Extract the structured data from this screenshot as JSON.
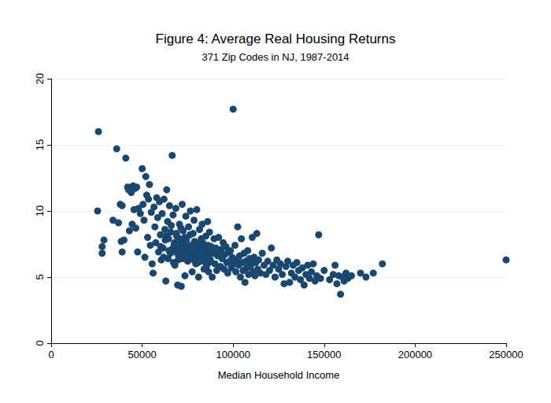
{
  "chart_data": {
    "type": "scatter",
    "title": "Figure 4: Average Real Housing Returns",
    "subtitle": "371 Zip Codes in NJ, 1987-2014",
    "x_label": "Median Household Income",
    "color": "#1a476f",
    "marker": "circle",
    "grid": true,
    "xlim": [
      0,
      250000
    ],
    "xticks": [
      0,
      50000,
      100000,
      150000,
      200000,
      250000
    ],
    "ylim": [
      0,
      20
    ],
    "yticks": [
      0,
      5,
      10,
      15,
      20
    ],
    "x": [
      25500,
      26000,
      28000,
      28000,
      29000,
      34000,
      36000,
      37000,
      38000,
      39000,
      38500,
      39000,
      40000,
      41000,
      42000,
      42500,
      43000,
      44000,
      44500,
      45000,
      45500,
      46000,
      46500,
      47000,
      47500,
      48000,
      49000,
      50000,
      50500,
      51000,
      51500,
      52000,
      52500,
      53000,
      53500,
      54000,
      54500,
      55000,
      55500,
      56000,
      56500,
      57000,
      57500,
      58000,
      58500,
      59000,
      59500,
      60000,
      60500,
      61000,
      61500,
      62000,
      62500,
      63000,
      63500,
      64000,
      64500,
      65000,
      65500,
      66000,
      66500,
      67000,
      67500,
      68000,
      68500,
      69000,
      69500,
      70000,
      70500,
      71000,
      71500,
      72000,
      72500,
      73000,
      73500,
      74000,
      74500,
      75000,
      75500,
      76000,
      76500,
      77000,
      77500,
      78000,
      78500,
      79000,
      79500,
      80000,
      80500,
      81000,
      81500,
      82000,
      82500,
      83000,
      83500,
      84000,
      84500,
      85000,
      85500,
      86000,
      60200,
      61800,
      62700,
      63300,
      64200,
      64800,
      65700,
      66300,
      67200,
      67800,
      68300,
      68800,
      69300,
      69800,
      70300,
      70800,
      71300,
      71800,
      72300,
      72800,
      73300,
      73800,
      74300,
      74800,
      75300,
      75800,
      76300,
      76800,
      77300,
      77800,
      78300,
      78800,
      79300,
      79800,
      80300,
      80800,
      81300,
      81800,
      82300,
      82800,
      83300,
      83800,
      84300,
      84800,
      85300,
      85800,
      86300,
      86800,
      87300,
      87800,
      86500,
      87000,
      87500,
      88000,
      88500,
      89000,
      89500,
      90000,
      90500,
      91000,
      91500,
      92000,
      92500,
      93000,
      93500,
      94000,
      94500,
      95000,
      95500,
      96000,
      96500,
      97000,
      97500,
      98000,
      98500,
      99000,
      99500,
      100000,
      100500,
      101000,
      101500,
      102000,
      102500,
      103000,
      103500,
      104000,
      104500,
      105000,
      105500,
      106000,
      106500,
      107000,
      107500,
      108000,
      108500,
      109000,
      109500,
      110000,
      110500,
      111000,
      111500,
      112000,
      112500,
      113000,
      113500,
      114000,
      115000,
      116000,
      117000,
      118000,
      119000,
      120000,
      121000,
      122000,
      123000,
      124000,
      125000,
      126000,
      127000,
      128000,
      129000,
      130000,
      131000,
      132000,
      133000,
      134000,
      135000,
      136000,
      137000,
      138000,
      139000,
      140000,
      141000,
      142000,
      143000,
      144000,
      145000,
      146000,
      147000,
      148000,
      150000,
      153000,
      155000,
      156000,
      157000,
      158000,
      159000,
      160000,
      161000,
      162000,
      163000,
      165000,
      170000,
      173000,
      177000,
      182000,
      250000
    ],
    "values": [
      10.0,
      16.0,
      6.8,
      7.3,
      7.8,
      9.3,
      14.7,
      9.1,
      10.5,
      10.4,
      7.7,
      6.9,
      7.8,
      14.0,
      11.8,
      11.6,
      8.5,
      11.4,
      9.0,
      11.9,
      10.1,
      11.7,
      8.7,
      11.8,
      6.9,
      10.2,
      9.8,
      13.2,
      10.5,
      9.3,
      6.5,
      12.6,
      11.2,
      8.0,
      10.9,
      12.0,
      7.4,
      9.9,
      6.0,
      5.3,
      10.3,
      8.8,
      7.6,
      11.0,
      9.5,
      6.9,
      10.7,
      8.2,
      6.3,
      9.8,
      7.2,
      10.9,
      8.6,
      4.7,
      11.6,
      9.2,
      7.9,
      10.4,
      6.8,
      8.9,
      14.2,
      9.7,
      7.4,
      5.9,
      10.2,
      8.1,
      4.4,
      6.6,
      9.0,
      7.7,
      4.3,
      10.5,
      8.5,
      6.9,
      5.1,
      9.6,
      7.3,
      6.2,
      8.8,
      7.0,
      10.0,
      6.5,
      5.4,
      8.3,
      9.3,
      7.1,
      6.0,
      10.1,
      7.6,
      5.0,
      8.6,
      6.7,
      7.9,
      9.0,
      6.2,
      5.6,
      7.4,
      8.1,
      6.9,
      9.2,
      7.3,
      6.5,
      7.8,
      8.1,
      6.4,
      7.0,
      8.4,
      7.1,
      6.1,
      7.6,
      6.9,
      8.3,
      7.2,
      6.3,
      7.9,
      6.8,
      8.7,
      7.5,
      6.4,
      7.1,
      8.0,
      6.6,
      7.8,
      6.9,
      7.2,
      6.4,
      8.2,
      7.4,
      6.8,
      7.0,
      6.3,
      7.7,
      6.6,
      7.3,
      6.8,
      6.1,
      7.2,
      6.5,
      7.0,
      6.3,
      7.6,
      6.9,
      6.4,
      7.1,
      5.8,
      6.6,
      7.4,
      6.1,
      6.8,
      7.0,
      5.4,
      8.4,
      6.3,
      7.3,
      5.0,
      6.8,
      7.9,
      6.0,
      7.2,
      5.5,
      6.6,
      8.0,
      6.9,
      5.8,
      7.1,
      6.4,
      7.6,
      5.6,
      6.7,
      7.3,
      6.1,
      5.3,
      6.9,
      6.2,
      7.0,
      5.7,
      6.5,
      17.7,
      6.0,
      7.4,
      5.4,
      6.3,
      8.8,
      5.9,
      6.6,
      5.0,
      7.9,
      6.1,
      5.5,
      6.8,
      4.6,
      6.2,
      5.7,
      7.0,
      5.2,
      6.4,
      5.8,
      6.0,
      8.0,
      5.4,
      6.5,
      5.1,
      6.1,
      8.3,
      5.6,
      6.3,
      5.3,
      6.8,
      5.9,
      5.2,
      6.2,
      5.5,
      7.2,
      5.9,
      5.0,
      6.3,
      5.6,
      6.0,
      5.2,
      4.5,
      5.8,
      6.2,
      4.6,
      5.3,
      5.9,
      5.0,
      6.1,
      5.5,
      4.8,
      5.7,
      4.4,
      5.2,
      5.9,
      4.9,
      5.4,
      6.0,
      4.7,
      5.1,
      8.2,
      4.9,
      5.5,
      4.8,
      5.2,
      5.9,
      4.5,
      5.1,
      3.7,
      5.0,
      4.7,
      5.3,
      4.9,
      5.1,
      5.3,
      5.0,
      5.3,
      6.0,
      6.3
    ]
  }
}
